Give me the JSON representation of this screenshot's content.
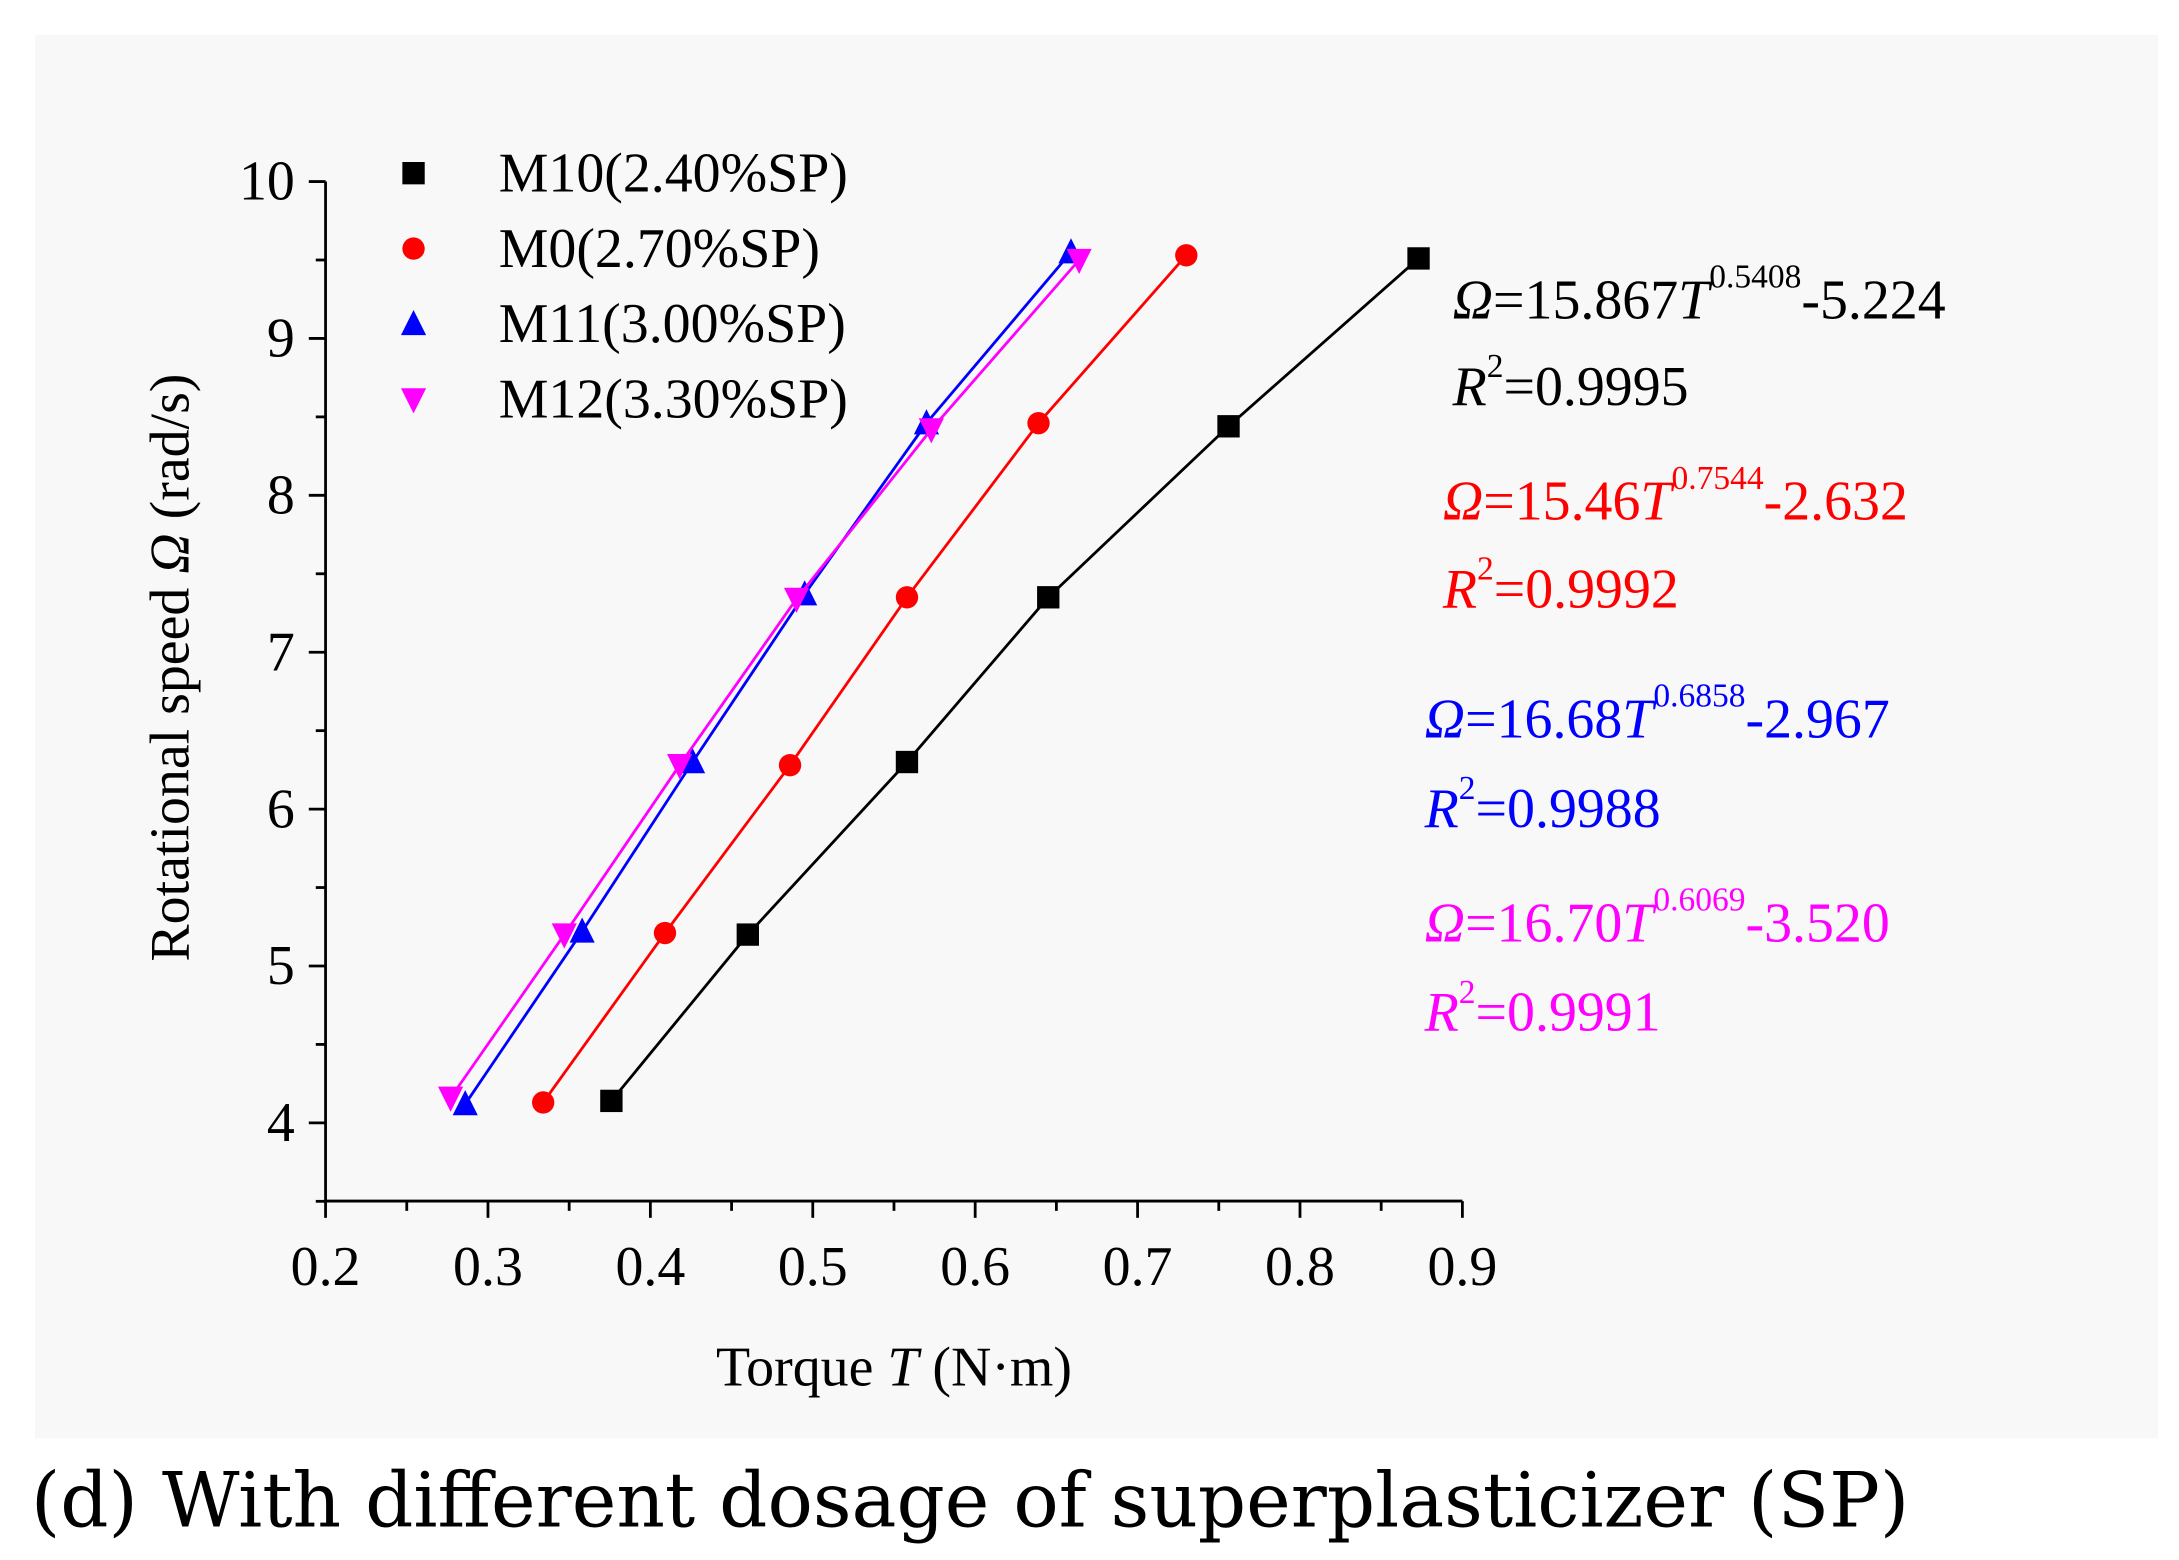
{
  "chart_data": {
    "type": "line",
    "title": "",
    "xlabel": {
      "prefix": "Torque ",
      "var": "T",
      "suffix": " (N·m)"
    },
    "ylabel": {
      "prefix": "Rotational speed ",
      "var": "Ω",
      "suffix": " (rad/s)"
    },
    "xlim": [
      0.2,
      0.9
    ],
    "ylim": [
      3.5,
      10
    ],
    "xticks": [
      "0.2",
      "0.3",
      "0.4",
      "0.5",
      "0.6",
      "0.7",
      "0.8",
      "0.9"
    ],
    "yticks": [
      "4",
      "5",
      "6",
      "7",
      "8",
      "9",
      "10"
    ],
    "grid": false,
    "legend_position": "top-left",
    "series": [
      {
        "name": "M10(2.40%SP)",
        "color": "#000000",
        "marker": "square",
        "x": [
          0.376,
          0.46,
          0.558,
          0.645,
          0.756,
          0.873
        ],
        "y": [
          4.14,
          5.2,
          6.3,
          7.35,
          8.44,
          9.51
        ],
        "equation": {
          "lhs": "Ω",
          "coef": "=15.867",
          "var": "T",
          "exp": "0.5408",
          "tail": "-5.224",
          "r2_label": "R",
          "r2_exp": "2",
          "r2_val": "=0.9995"
        }
      },
      {
        "name": "M0(2.70%SP)",
        "color": "#ff0000",
        "marker": "circle",
        "x": [
          0.334,
          0.409,
          0.486,
          0.558,
          0.639,
          0.73
        ],
        "y": [
          4.13,
          5.21,
          6.28,
          7.35,
          8.46,
          9.53
        ],
        "equation": {
          "lhs": "Ω",
          "coef": "=15.46",
          "var": "T",
          "exp": "0.7544",
          "tail": "-2.632",
          "r2_label": "R",
          "r2_exp": "2",
          "r2_val": "=0.9992"
        }
      },
      {
        "name": "M11(3.00%SP)",
        "color": "#0000ff",
        "marker": "triangle-up",
        "x": [
          0.286,
          0.358,
          0.426,
          0.495,
          0.57,
          0.659
        ],
        "y": [
          4.12,
          5.22,
          6.3,
          7.37,
          8.46,
          9.55
        ],
        "equation": {
          "lhs": "Ω",
          "coef": "=16.68",
          "var": "T",
          "exp": "0.6858",
          "tail": "-2.967",
          "r2_label": "R",
          "r2_exp": "2",
          "r2_val": "=0.9988"
        }
      },
      {
        "name": "M12(3.30%SP)",
        "color": "#ff00ff",
        "marker": "triangle-down",
        "x": [
          0.277,
          0.347,
          0.418,
          0.49,
          0.573,
          0.664
        ],
        "y": [
          4.16,
          5.2,
          6.28,
          7.34,
          8.42,
          9.5
        ],
        "equation": {
          "lhs": "Ω",
          "coef": "=16.70",
          "var": "T",
          "exp": "0.6069",
          "tail": "-3.520",
          "r2_label": "R",
          "r2_exp": "2",
          "r2_val": "=0.9991"
        }
      }
    ]
  },
  "caption": "(d) With different dosage of superplasticizer (SP)"
}
